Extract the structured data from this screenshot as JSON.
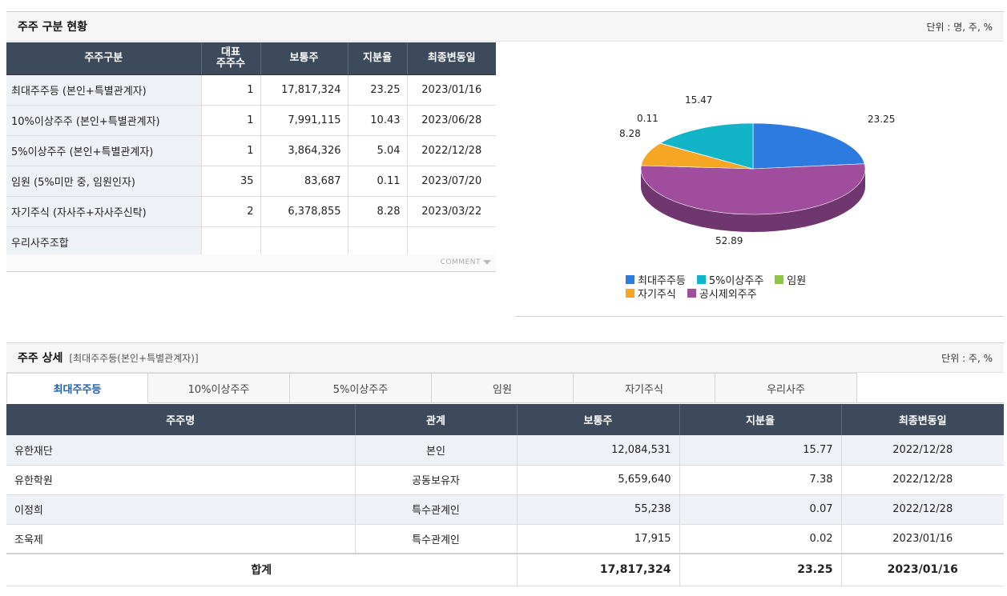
{
  "summary": {
    "title": "주주 구분 현황",
    "unit": "단위 : 명, 주, %",
    "headers": {
      "category": "주주구분",
      "rep_line1": "대표",
      "rep_line2": "주주수",
      "shares": "보통주",
      "ratio": "지분율",
      "date": "최종변동일"
    },
    "rows": [
      {
        "category": "최대주주등 (본인+특별관계자)",
        "count": "1",
        "shares": "17,817,324",
        "ratio": "23.25",
        "date": "2023/01/16"
      },
      {
        "category": "10%이상주주 (본인+특별관계자)",
        "count": "1",
        "shares": "7,991,115",
        "ratio": "10.43",
        "date": "2023/06/28"
      },
      {
        "category": "5%이상주주 (본인+특별관계자)",
        "count": "1",
        "shares": "3,864,326",
        "ratio": "5.04",
        "date": "2022/12/28"
      },
      {
        "category": "임원 (5%미만 중, 임원인자)",
        "count": "35",
        "shares": "83,687",
        "ratio": "0.11",
        "date": "2023/07/20"
      },
      {
        "category": "자기주식 (자사주+자사주신탁)",
        "count": "2",
        "shares": "6,378,855",
        "ratio": "8.28",
        "date": "2023/03/22"
      },
      {
        "category": "우리사주조합",
        "count": "",
        "shares": "",
        "ratio": "",
        "date": ""
      }
    ],
    "comment_label": "COMMENT"
  },
  "chart_data": {
    "type": "pie",
    "slices": [
      {
        "name": "최대주주등",
        "value": 23.25,
        "label": "23.25",
        "color": "#2d7be0"
      },
      {
        "name": "공시제외주주",
        "value": 52.89,
        "label": "52.89",
        "color": "#a04d9e"
      },
      {
        "name": "자기주식",
        "value": 8.28,
        "label": "8.28",
        "color": "#f5a623"
      },
      {
        "name": "임원",
        "value": 0.11,
        "label": "0.11",
        "color": "#8dc63f"
      },
      {
        "name": "5%이상주주",
        "value": 15.47,
        "label": "15.47",
        "color": "#12b5c8"
      }
    ],
    "legend": [
      {
        "name": "최대주주등",
        "color": "#2d7be0"
      },
      {
        "name": "5%이상주주",
        "color": "#12b5c8"
      },
      {
        "name": "임원",
        "color": "#8dc63f"
      },
      {
        "name": "자기주식",
        "color": "#f5a623"
      },
      {
        "name": "공시제외주주",
        "color": "#a04d9e"
      }
    ],
    "legend_placement": "bottom"
  },
  "detail": {
    "title": "주주 상세",
    "subtitle": "[최대주주등(본인+특별관계자)]",
    "unit": "단위 : 주, %",
    "tabs": [
      "최대주주등",
      "10%이상주주",
      "5%이상주주",
      "임원",
      "자기주식",
      "우리사주"
    ],
    "active_tab": 0,
    "headers": {
      "name": "주주명",
      "relation": "관계",
      "shares": "보통주",
      "ratio": "지분율",
      "date": "최종변동일"
    },
    "rows": [
      {
        "name": "유한재단",
        "relation": "본인",
        "shares": "12,084,531",
        "ratio": "15.77",
        "date": "2022/12/28"
      },
      {
        "name": "유한학원",
        "relation": "공동보유자",
        "shares": "5,659,640",
        "ratio": "7.38",
        "date": "2022/12/28"
      },
      {
        "name": "이정희",
        "relation": "특수관계인",
        "shares": "55,238",
        "ratio": "0.07",
        "date": "2022/12/28"
      },
      {
        "name": "조욱제",
        "relation": "특수관계인",
        "shares": "17,915",
        "ratio": "0.02",
        "date": "2023/01/16"
      }
    ],
    "total": {
      "label": "합계",
      "shares": "17,817,324",
      "ratio": "23.25",
      "date": "2023/01/16"
    }
  }
}
